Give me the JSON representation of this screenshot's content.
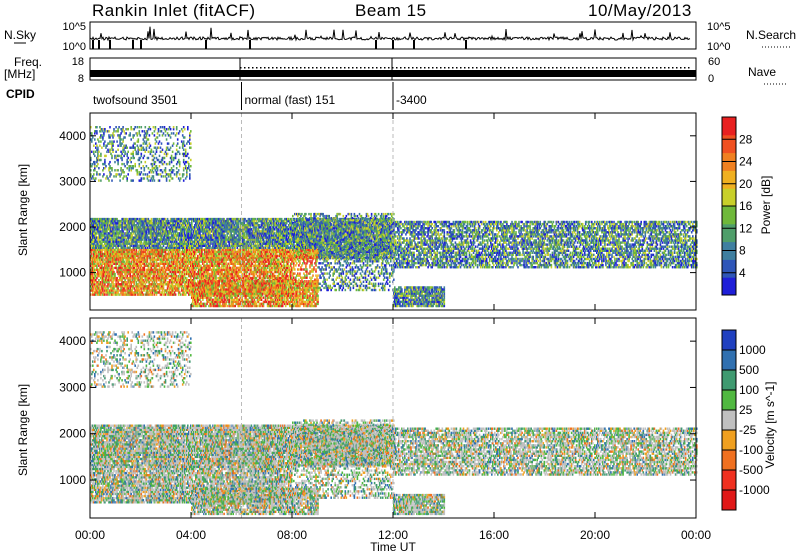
{
  "header": {
    "station": "Rankin Inlet (fitACF)",
    "beam": "Beam 15",
    "date": "10/May/2013"
  },
  "noise_panel": {
    "left_label": "N.Sky",
    "right_label": "N.Search",
    "ticks_left": [
      "10^5",
      "10^0"
    ],
    "ticks_right": [
      "10^5",
      "10^0"
    ]
  },
  "freq_panel": {
    "left_label_1": "Freq.",
    "left_label_2": "[MHz]",
    "right_label": "Nave",
    "ticks_left": [
      "18",
      "8"
    ],
    "ticks_right": [
      "60",
      "0"
    ]
  },
  "cpid": {
    "label": "CPID",
    "segments": [
      {
        "name": "twofsound 3501",
        "start_h": 0,
        "end_h": 6.0
      },
      {
        "name": "normal (fast) 151",
        "start_h": 6.0,
        "end_h": 12.0
      },
      {
        "name": "-3400",
        "start_h": 12.0,
        "end_h": 24.0
      }
    ]
  },
  "chart_data": [
    {
      "type": "heatmap",
      "title": "",
      "xlabel": "Time UT",
      "ylabel": "Slant Range [km]",
      "xlim_h": [
        0,
        24
      ],
      "ylim_km": [
        180,
        4500
      ],
      "x_ticks": [
        "00:00",
        "04:00",
        "08:00",
        "12:00",
        "16:00",
        "20:00",
        "00:00"
      ],
      "y_ticks": [
        "1000",
        "2000",
        "3000",
        "4000"
      ],
      "colorbar": {
        "label": "Power [dB]",
        "ticks": [
          "4",
          "8",
          "12",
          "16",
          "20",
          "24",
          "28"
        ],
        "colors": [
          "#1f1fd8",
          "#2f56b8",
          "#3f7fa0",
          "#4f9e6a",
          "#6fb83a",
          "#c8cf2a",
          "#f0b020",
          "#f08020",
          "#f05020",
          "#e82020"
        ]
      }
    },
    {
      "type": "heatmap",
      "title": "",
      "xlabel": "Time UT",
      "ylabel": "Slant Range [km]",
      "xlim_h": [
        0,
        24
      ],
      "ylim_km": [
        180,
        4500
      ],
      "x_ticks": [
        "00:00",
        "04:00",
        "08:00",
        "12:00",
        "16:00",
        "20:00",
        "00:00"
      ],
      "y_ticks": [
        "1000",
        "2000",
        "3000",
        "4000"
      ],
      "colorbar": {
        "label": "Velocity [m s^-1]",
        "ticks": [
          "1000",
          "500",
          "100",
          "25",
          "-25",
          "-100",
          "-500",
          "-1000"
        ],
        "colors": [
          "#2040c0",
          "#3070b0",
          "#3f9a70",
          "#50b840",
          "#c0c0c0",
          "#f0a020",
          "#f07020",
          "#f03020",
          "#e01818"
        ]
      }
    }
  ],
  "axis": {
    "time_label": "Time UT"
  }
}
